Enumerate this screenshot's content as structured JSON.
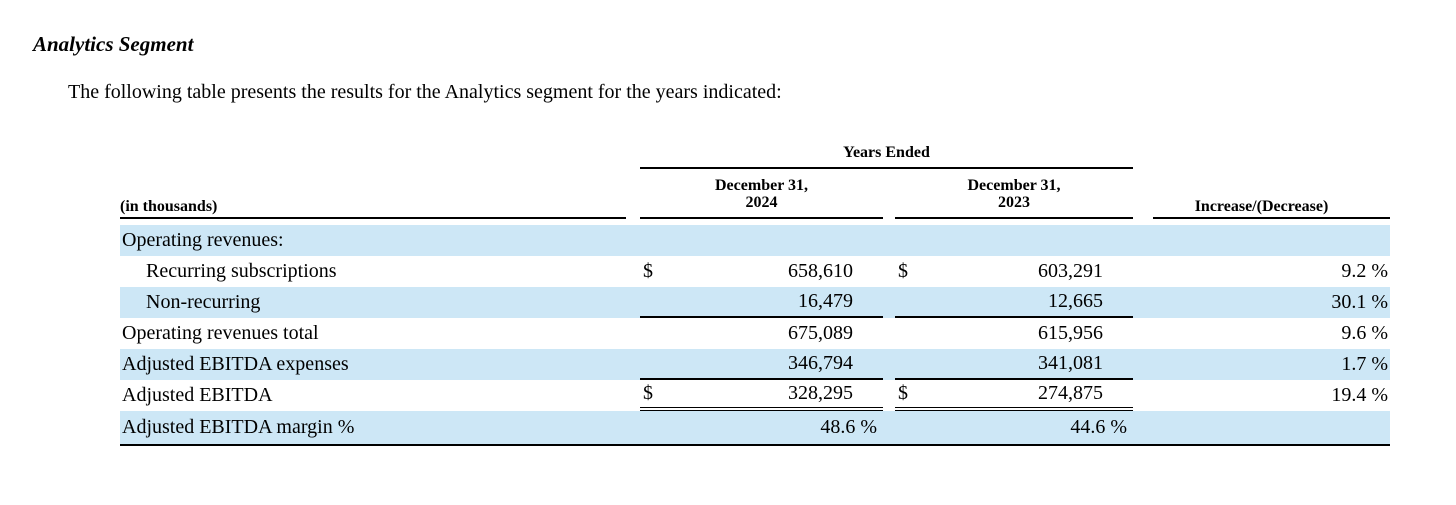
{
  "colors": {
    "row_shade": "#cde7f6"
  },
  "page": {
    "heading": "Analytics Segment",
    "intro": "The following table presents the results for the Analytics segment for the years indicated:"
  },
  "table": {
    "years_ended": "Years Ended",
    "in_thousands": "(in thousands)",
    "col_2024": {
      "line1": "December 31,",
      "line2": "2024"
    },
    "col_2023": {
      "line1": "December 31,",
      "line2": "2023"
    },
    "col_change": "Increase/(Decrease)",
    "rows": [
      {
        "label": "Operating revenues:",
        "d1": "",
        "v1": "",
        "d2": "",
        "v2": "",
        "pct": ""
      },
      {
        "label": "Recurring subscriptions",
        "d1": "$",
        "v1": "658,610",
        "d2": "$",
        "v2": "603,291",
        "pct": "9.2 %"
      },
      {
        "label": "Non-recurring",
        "d1": "",
        "v1": "16,479",
        "d2": "",
        "v2": "12,665",
        "pct": "30.1 %"
      },
      {
        "label": "Operating revenues total",
        "d1": "",
        "v1": "675,089",
        "d2": "",
        "v2": "615,956",
        "pct": "9.6 %"
      },
      {
        "label": "Adjusted EBITDA expenses",
        "d1": "",
        "v1": "346,794",
        "d2": "",
        "v2": "341,081",
        "pct": "1.7 %"
      },
      {
        "label": "Adjusted EBITDA",
        "d1": "$",
        "v1": "328,295",
        "d2": "$",
        "v2": "274,875",
        "pct": "19.4 %"
      },
      {
        "label": "Adjusted EBITDA margin %",
        "d1": "",
        "v1": "48.6 %",
        "d2": "",
        "v2": "44.6 %",
        "pct": ""
      }
    ]
  }
}
